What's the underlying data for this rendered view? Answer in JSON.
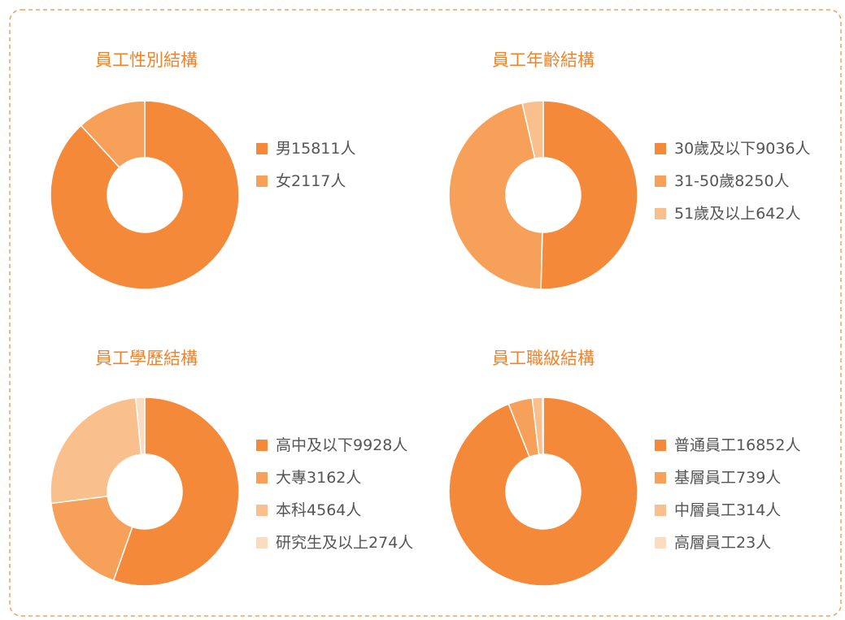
{
  "chart_data": [
    {
      "type": "pie",
      "title": "員工性別結構",
      "categories": [
        "男",
        "女"
      ],
      "values": [
        15811,
        2117
      ],
      "value_labels": [
        "15811人",
        "2117人"
      ],
      "colors": [
        "#f5893a",
        "#f7a05a"
      ]
    },
    {
      "type": "pie",
      "title": "員工年齡結構",
      "categories": [
        "30歲及以下",
        "31-50歲",
        "51歲及以上"
      ],
      "values": [
        9036,
        8250,
        642
      ],
      "value_labels": [
        "9036人",
        "8250人",
        "642人"
      ],
      "colors": [
        "#f5893a",
        "#f7a05a",
        "#f9bf8c"
      ]
    },
    {
      "type": "pie",
      "title": "員工學歷結構",
      "categories": [
        "高中及以下",
        "大專",
        "本科",
        "研究生及以上"
      ],
      "values": [
        9928,
        3162,
        4564,
        274
      ],
      "value_labels": [
        "9928人",
        "3162人",
        "4564人",
        "274人"
      ],
      "colors": [
        "#f5893a",
        "#f7a05a",
        "#f9bf8c",
        "#fcdcc0"
      ]
    },
    {
      "type": "pie",
      "title": "員工職級結構",
      "categories": [
        "普通員工",
        "基層員工",
        "中層員工",
        "高層員工"
      ],
      "values": [
        16852,
        739,
        314,
        23
      ],
      "value_labels": [
        "16852人",
        "739人",
        "314人",
        "23人"
      ],
      "colors": [
        "#f5893a",
        "#f7a05a",
        "#f9bf8c",
        "#fcdcc0"
      ]
    }
  ]
}
